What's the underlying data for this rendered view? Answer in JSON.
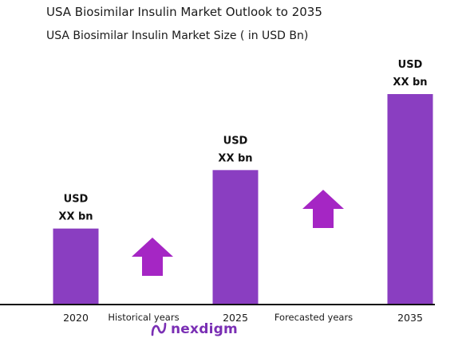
{
  "title": "USA Biosimilar Insulin Market Outlook to 2035",
  "subtitle": "USA Biosimilar Insulin Market Size  ( in USD Bn)",
  "logo": "nexdigm",
  "colors": {
    "bar": "#8a3ec1",
    "arrow": "#a526c4",
    "axis": "#111111",
    "logo": "#7a2fb4"
  },
  "chart_data": {
    "type": "bar",
    "categories": [
      "2020",
      "2025",
      "2035"
    ],
    "values": [
      26,
      46,
      72
    ],
    "ylim": [
      0,
      72
    ],
    "data_labels": [
      {
        "line1": "USD",
        "line2": "XX bn"
      },
      {
        "line1": "USD",
        "line2": "XX bn"
      },
      {
        "line1": "USD",
        "line2": "XX bn"
      }
    ],
    "period_labels": [
      "Historical years",
      "Forecasted years"
    ],
    "grid": false,
    "legend": "none"
  }
}
